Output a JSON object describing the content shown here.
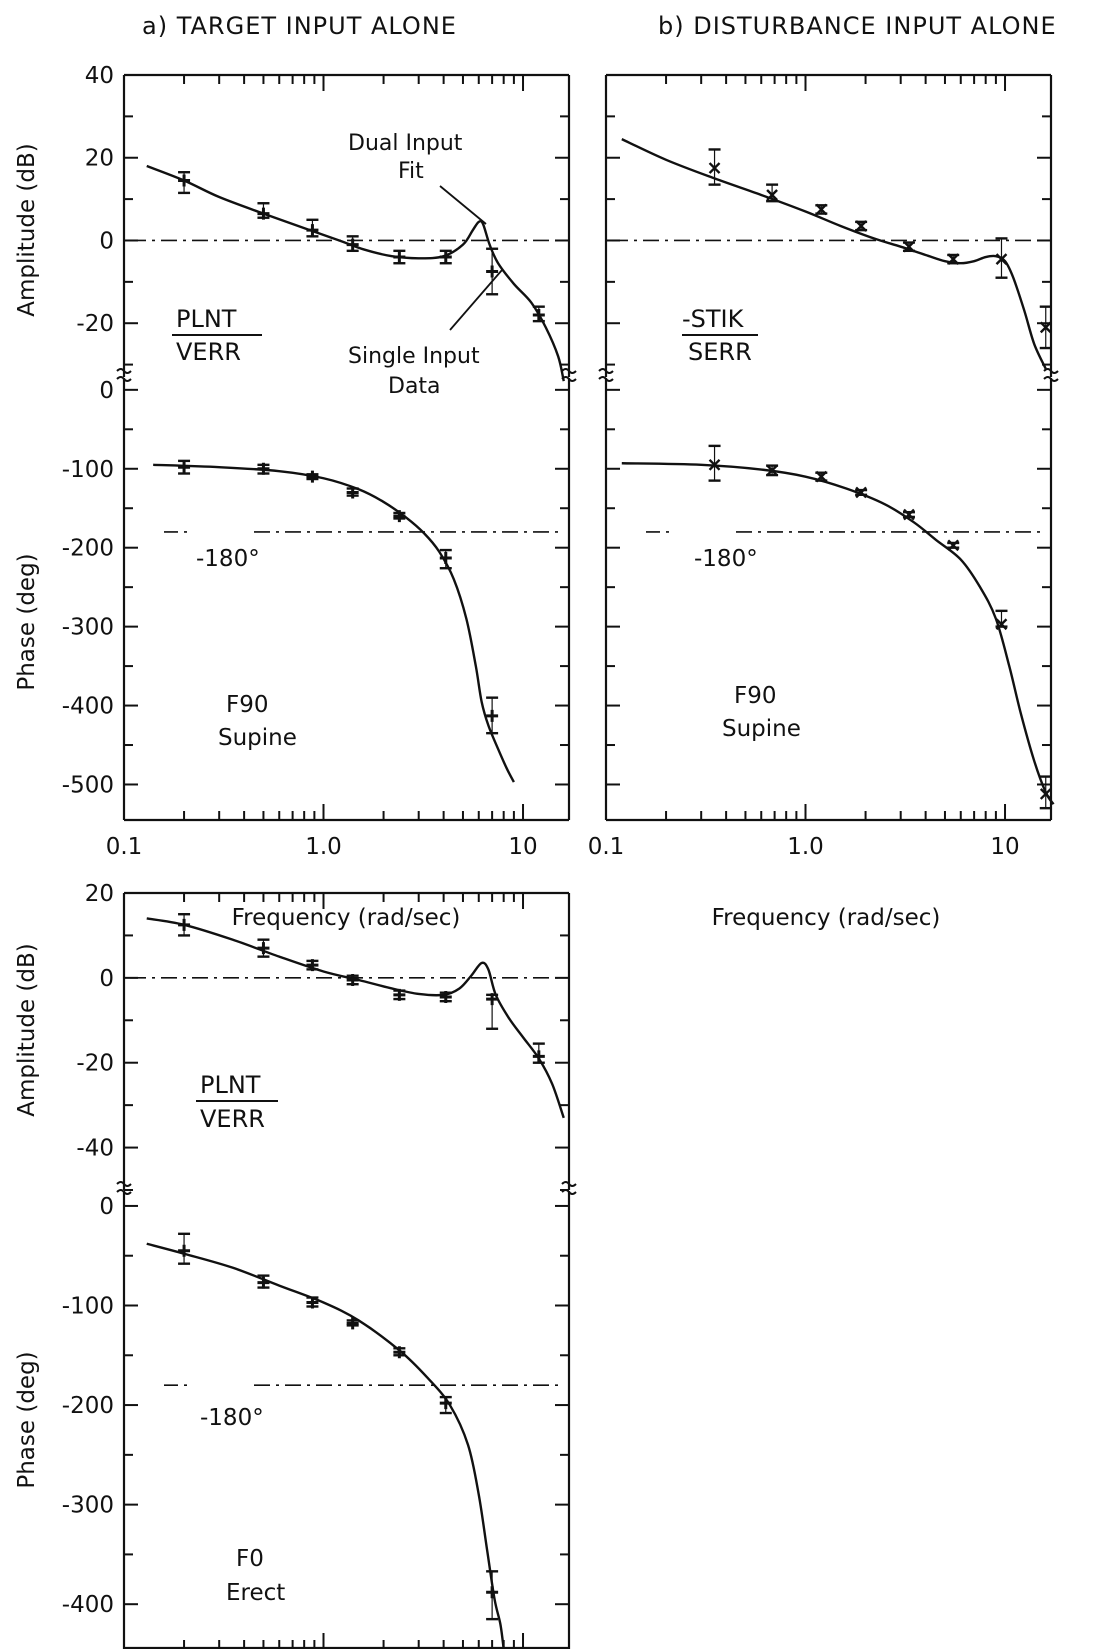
{
  "figure": {
    "title_a": "a) TARGET INPUT ALONE",
    "title_b": "b) DISTURBANCE INPUT ALONE"
  },
  "chart_data": [
    {
      "id": "a_amp",
      "type": "line",
      "ylabel": "Amplitude (dB)",
      "xscale": "log",
      "xlim": [
        0.1,
        17
      ],
      "ylim": [
        -33,
        40
      ],
      "yticks": [
        40,
        20,
        0,
        -20
      ],
      "fraction": {
        "num": "PLNT",
        "den": "VERR"
      },
      "annotations": [
        "Dual Input",
        "Fit",
        "Single Input",
        "Data"
      ],
      "reference_line": 0,
      "fit_curve": [
        [
          0.13,
          18
        ],
        [
          0.2,
          14.5
        ],
        [
          0.3,
          10.5
        ],
        [
          0.5,
          6.5
        ],
        [
          0.8,
          3
        ],
        [
          1.2,
          0
        ],
        [
          1.6,
          -2.2
        ],
        [
          2.2,
          -3.8
        ],
        [
          3,
          -4.3
        ],
        [
          4,
          -3.8
        ],
        [
          5,
          -1
        ],
        [
          5.6,
          2.5
        ],
        [
          6,
          4.5
        ],
        [
          6.3,
          4
        ],
        [
          6.8,
          -1
        ],
        [
          7.5,
          -5.5
        ],
        [
          9,
          -10.5
        ],
        [
          11,
          -15
        ],
        [
          13,
          -21
        ],
        [
          15,
          -28
        ],
        [
          16,
          -34
        ]
      ],
      "data_points": [
        {
          "x": 0.2,
          "y": 14.5,
          "hi": 16.5,
          "lo": 11.5
        },
        {
          "x": 0.5,
          "y": 6.5,
          "hi": 9,
          "lo": 5.5
        },
        {
          "x": 0.88,
          "y": 2.5,
          "hi": 5,
          "lo": 1
        },
        {
          "x": 1.4,
          "y": -1,
          "hi": 1,
          "lo": -2.5
        },
        {
          "x": 2.4,
          "y": -4,
          "hi": -2.5,
          "lo": -5.5
        },
        {
          "x": 4.1,
          "y": -4,
          "hi": -2.5,
          "lo": -5.5
        },
        {
          "x": 7,
          "y": -7.5,
          "hi": -2,
          "lo": -13
        },
        {
          "x": 12,
          "y": -18,
          "hi": -16,
          "lo": -19.5
        }
      ]
    },
    {
      "id": "a_phase",
      "type": "line",
      "ylabel": "Phase (deg)",
      "xlabel": "Frequency (rad/sec)",
      "xscale": "log",
      "xlim": [
        0.1,
        17
      ],
      "ylim": [
        -545,
        15
      ],
      "yticks": [
        0,
        -100,
        -200,
        -300,
        -400,
        -500
      ],
      "xticks": [
        {
          "v": 0.1,
          "t": "0.1"
        },
        {
          "v": 1,
          "t": "1.0"
        },
        {
          "v": 10,
          "t": "10"
        }
      ],
      "reference_label": "-180°",
      "reference_line": -180,
      "case_label": [
        "F90",
        "Supine"
      ],
      "fit_curve": [
        [
          0.14,
          -95
        ],
        [
          0.3,
          -98
        ],
        [
          0.6,
          -103
        ],
        [
          1,
          -112
        ],
        [
          1.5,
          -126
        ],
        [
          2,
          -142
        ],
        [
          2.6,
          -162
        ],
        [
          3.2,
          -182
        ],
        [
          3.8,
          -205
        ],
        [
          4.5,
          -240
        ],
        [
          5.2,
          -290
        ],
        [
          5.8,
          -350
        ],
        [
          6.2,
          -395
        ],
        [
          6.7,
          -425
        ],
        [
          7.5,
          -455
        ],
        [
          8.3,
          -480
        ],
        [
          9,
          -497
        ]
      ],
      "data_points": [
        {
          "x": 0.2,
          "y": -98,
          "hi": -90,
          "lo": -106
        },
        {
          "x": 0.5,
          "y": -100,
          "hi": -95,
          "lo": -106
        },
        {
          "x": 0.88,
          "y": -110,
          "hi": -107,
          "lo": -113
        },
        {
          "x": 1.4,
          "y": -130,
          "hi": -125,
          "lo": -134
        },
        {
          "x": 2.4,
          "y": -160,
          "hi": -156,
          "lo": -163
        },
        {
          "x": 4.1,
          "y": -213,
          "hi": -203,
          "lo": -226
        },
        {
          "x": 7,
          "y": -413,
          "hi": -390,
          "lo": -435
        }
      ]
    },
    {
      "id": "b_amp",
      "type": "line",
      "xscale": "log",
      "xlim": [
        0.1,
        17
      ],
      "ylim": [
        -33,
        40
      ],
      "fraction": {
        "num": "-STIK",
        "den": "SERR"
      },
      "reference_line": 0,
      "fit_curve": [
        [
          0.12,
          24.5
        ],
        [
          0.2,
          19.5
        ],
        [
          0.35,
          15
        ],
        [
          0.6,
          11
        ],
        [
          1,
          7
        ],
        [
          1.5,
          3.5
        ],
        [
          2.2,
          0.5
        ],
        [
          3,
          -1.5
        ],
        [
          4,
          -3.5
        ],
        [
          5,
          -5
        ],
        [
          6,
          -5.5
        ],
        [
          7,
          -5
        ],
        [
          8,
          -4
        ],
        [
          9,
          -3.8
        ],
        [
          10,
          -5
        ],
        [
          11,
          -9
        ],
        [
          12.5,
          -17
        ],
        [
          14,
          -25
        ],
        [
          16,
          -31
        ]
      ],
      "data_points": [
        {
          "x": 0.35,
          "y": 17.5,
          "hi": 22,
          "lo": 13.5
        },
        {
          "x": 0.68,
          "y": 11,
          "hi": 13.5,
          "lo": 9.5
        },
        {
          "x": 1.2,
          "y": 7.5,
          "hi": 8.5,
          "lo": 6.5
        },
        {
          "x": 1.9,
          "y": 3.5,
          "hi": 4.5,
          "lo": 2.5
        },
        {
          "x": 3.3,
          "y": -1.5,
          "hi": -0.5,
          "lo": -2.5
        },
        {
          "x": 5.5,
          "y": -4.5,
          "hi": -3.5,
          "lo": -5.5
        },
        {
          "x": 9.6,
          "y": -4.5,
          "hi": 0.5,
          "lo": -9
        },
        {
          "x": 16,
          "y": -21,
          "hi": -16,
          "lo": -26
        }
      ]
    },
    {
      "id": "b_phase",
      "type": "line",
      "xlabel": "Frequency (rad/sec)",
      "xscale": "log",
      "xlim": [
        0.1,
        17
      ],
      "ylim": [
        -545,
        15
      ],
      "xticks": [
        {
          "v": 0.1,
          "t": "0.1"
        },
        {
          "v": 1,
          "t": "1.0"
        },
        {
          "v": 10,
          "t": "10"
        }
      ],
      "reference_label": "-180°",
      "reference_line": -180,
      "case_label": [
        "F90",
        "Supine"
      ],
      "fit_curve": [
        [
          0.12,
          -93
        ],
        [
          0.3,
          -95
        ],
        [
          0.6,
          -101
        ],
        [
          1,
          -110
        ],
        [
          1.6,
          -125
        ],
        [
          2.5,
          -145
        ],
        [
          3.5,
          -168
        ],
        [
          4.5,
          -190
        ],
        [
          6,
          -215
        ],
        [
          7.5,
          -250
        ],
        [
          9,
          -290
        ],
        [
          10.5,
          -350
        ],
        [
          12,
          -410
        ],
        [
          14,
          -470
        ],
        [
          16,
          -510
        ],
        [
          17.5,
          -525
        ]
      ],
      "data_points": [
        {
          "x": 0.35,
          "y": -95,
          "hi": -71,
          "lo": -115
        },
        {
          "x": 0.68,
          "y": -102,
          "hi": -96,
          "lo": -108
        },
        {
          "x": 1.2,
          "y": -110,
          "hi": -105,
          "lo": -115
        },
        {
          "x": 1.9,
          "y": -130,
          "hi": -127,
          "lo": -133
        },
        {
          "x": 3.3,
          "y": -158,
          "hi": -155,
          "lo": -161
        },
        {
          "x": 5.5,
          "y": -197,
          "hi": -194,
          "lo": -200
        },
        {
          "x": 9.6,
          "y": -297,
          "hi": -280,
          "lo": -300
        },
        {
          "x": 16,
          "y": -512,
          "hi": -490,
          "lo": -530
        }
      ]
    },
    {
      "id": "c_amp",
      "type": "line",
      "ylabel": "Amplitude (dB)",
      "xscale": "log",
      "xlim": [
        0.1,
        17
      ],
      "ylim": [
        -50,
        20
      ],
      "yticks": [
        20,
        0,
        -20,
        -40
      ],
      "fraction": {
        "num": "PLNT",
        "den": "VERR"
      },
      "reference_line": 0,
      "fit_curve": [
        [
          0.13,
          14
        ],
        [
          0.2,
          12.5
        ],
        [
          0.35,
          9
        ],
        [
          0.6,
          5
        ],
        [
          1,
          1.5
        ],
        [
          1.5,
          -0.5
        ],
        [
          2.2,
          -2.5
        ],
        [
          3,
          -3.8
        ],
        [
          4,
          -4
        ],
        [
          4.8,
          -2.5
        ],
        [
          5.5,
          0.5
        ],
        [
          6.2,
          3.5
        ],
        [
          6.7,
          2
        ],
        [
          7.3,
          -4
        ],
        [
          8.5,
          -9.5
        ],
        [
          10,
          -14
        ],
        [
          12,
          -19
        ],
        [
          14,
          -25
        ],
        [
          16,
          -33
        ]
      ],
      "data_points": [
        {
          "x": 0.2,
          "y": 12.5,
          "hi": 15,
          "lo": 10
        },
        {
          "x": 0.5,
          "y": 7,
          "hi": 9,
          "lo": 5
        },
        {
          "x": 0.88,
          "y": 3,
          "hi": 4,
          "lo": 2
        },
        {
          "x": 1.4,
          "y": -0.5,
          "hi": 0.5,
          "lo": -1.5
        },
        {
          "x": 2.4,
          "y": -4,
          "hi": -3,
          "lo": -5
        },
        {
          "x": 4.1,
          "y": -4.5,
          "hi": -3.5,
          "lo": -5.5
        },
        {
          "x": 7,
          "y": -5,
          "hi": -4,
          "lo": -12
        },
        {
          "x": 12,
          "y": -18.5,
          "hi": -15.5,
          "lo": -20
        }
      ]
    },
    {
      "id": "c_phase",
      "type": "line",
      "ylabel": "Phase (deg)",
      "xscale": "log",
      "xlim": [
        0.1,
        17
      ],
      "ylim": [
        -445,
        15
      ],
      "yticks": [
        0,
        -100,
        -200,
        -300,
        -400
      ],
      "reference_label": "-180°",
      "reference_line": -180,
      "case_label": [
        "F0",
        "Erect"
      ],
      "fit_curve": [
        [
          0.13,
          -38
        ],
        [
          0.2,
          -48
        ],
        [
          0.35,
          -62
        ],
        [
          0.6,
          -80
        ],
        [
          1,
          -97
        ],
        [
          1.5,
          -115
        ],
        [
          2.4,
          -145
        ],
        [
          3.3,
          -172
        ],
        [
          4.3,
          -200
        ],
        [
          5.3,
          -240
        ],
        [
          6,
          -290
        ],
        [
          6.6,
          -345
        ],
        [
          7.2,
          -395
        ],
        [
          7.7,
          -420
        ],
        [
          8,
          -445
        ]
      ],
      "data_points": [
        {
          "x": 0.2,
          "y": -45,
          "hi": -28,
          "lo": -58
        },
        {
          "x": 0.5,
          "y": -77,
          "hi": -70,
          "lo": -82
        },
        {
          "x": 0.88,
          "y": -97,
          "hi": -92,
          "lo": -101
        },
        {
          "x": 1.4,
          "y": -118,
          "hi": -115,
          "lo": -120
        },
        {
          "x": 2.4,
          "y": -147,
          "hi": -143,
          "lo": -150
        },
        {
          "x": 4.1,
          "y": -198,
          "hi": -192,
          "lo": -208
        },
        {
          "x": 7,
          "y": -388,
          "hi": -367,
          "lo": -415
        }
      ]
    }
  ]
}
